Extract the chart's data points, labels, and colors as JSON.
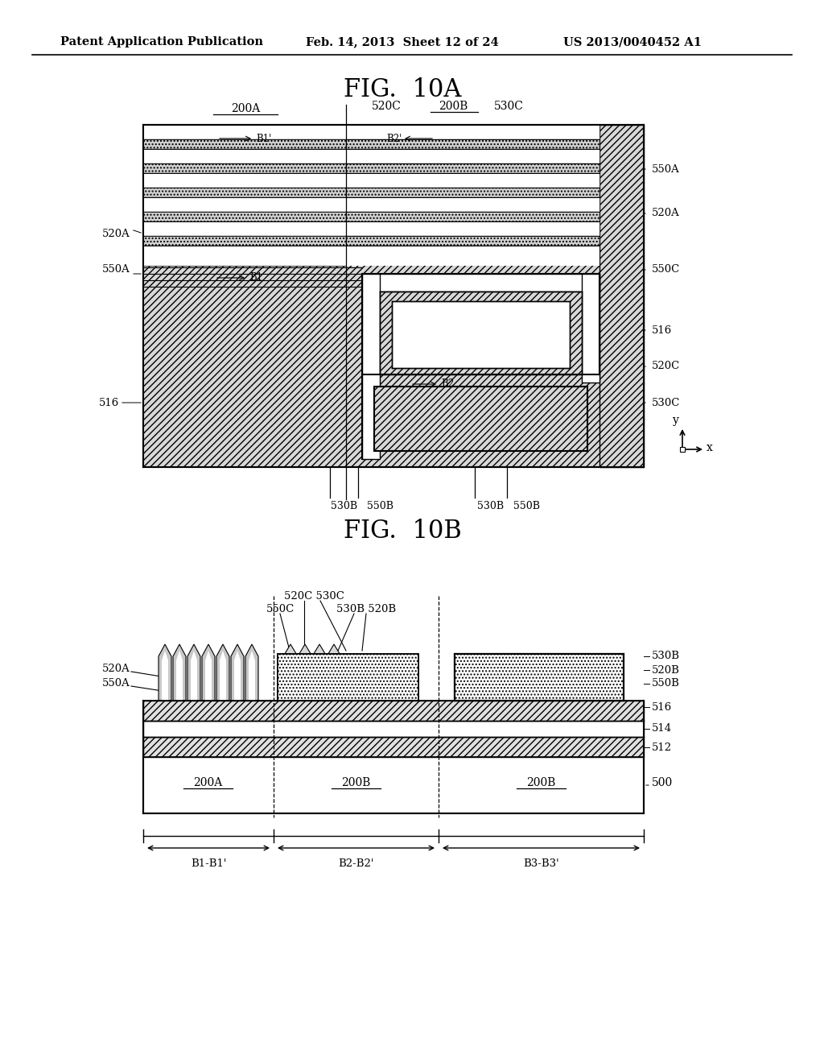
{
  "header_left": "Patent Application Publication",
  "header_mid": "Feb. 14, 2013  Sheet 12 of 24",
  "header_right": "US 2013/0040452 A1",
  "fig_title_a": "FIG.  10A",
  "fig_title_b": "FIG.  10B"
}
